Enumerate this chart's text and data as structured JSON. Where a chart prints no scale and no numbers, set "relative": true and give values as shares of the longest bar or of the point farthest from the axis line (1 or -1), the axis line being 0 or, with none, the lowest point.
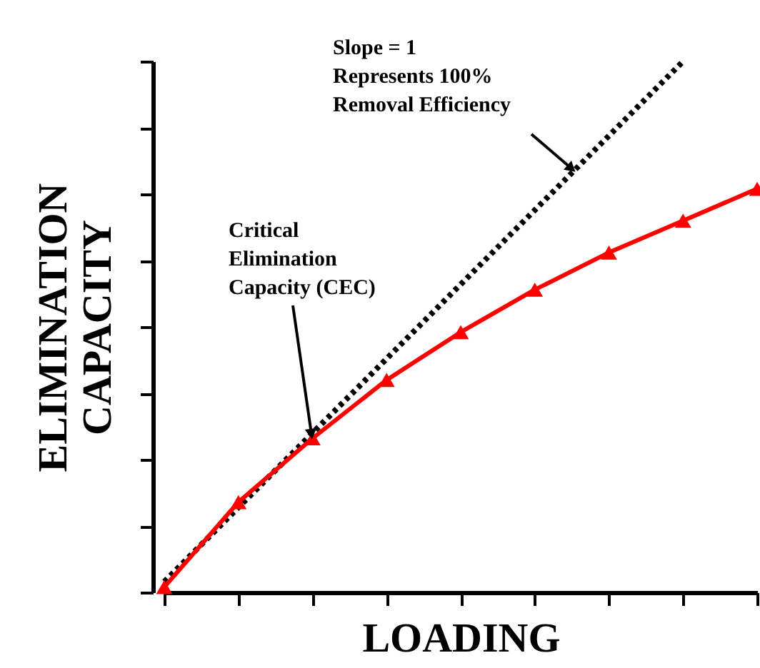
{
  "chart_data": {
    "type": "line",
    "relative": true,
    "xlabel": "LOADING",
    "ylabel": "ELIMINATION\nCAPACITY",
    "categories": [
      null,
      null,
      null,
      null,
      null,
      null,
      null,
      null,
      null
    ],
    "series": [
      {
        "color": "#000000",
        "line_style": "dotted",
        "marker": "none",
        "values": [
          0.02,
          0.16,
          0.3,
          0.44,
          0.58,
          0.72,
          0.86,
          1.0,
          null
        ]
      },
      {
        "color": "#ff0000",
        "line_style": "solid",
        "marker": "triangle",
        "values": [
          0.01,
          0.17,
          0.29,
          0.4,
          0.49,
          0.57,
          0.64,
          0.7,
          0.76
        ]
      }
    ],
    "annotations": [
      "Slope = 1\nRepresents 100%\nRemoval Efficiency",
      "Critical\nElimination\nCapacity (CEC)"
    ]
  }
}
